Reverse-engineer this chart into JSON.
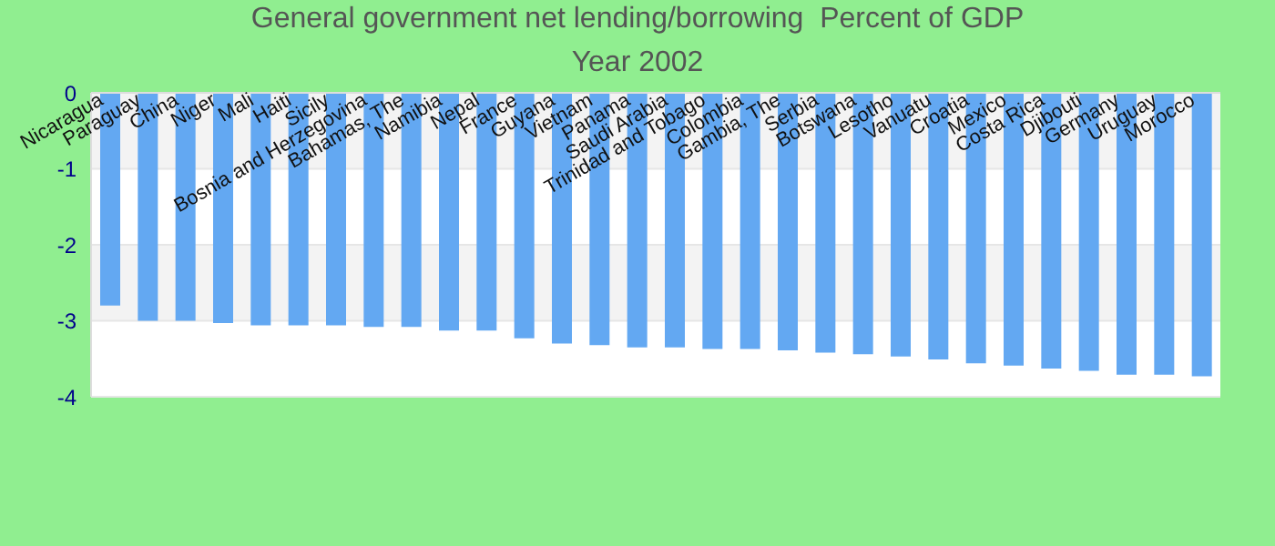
{
  "chart_data": {
    "type": "bar",
    "title": "General government net lending/borrowing  Percent of GDP",
    "subtitle": "Year 2002",
    "categories": [
      "Nicaragua",
      "Paraguay",
      "China",
      "Niger",
      "Mali",
      "Haiti",
      "Sicily",
      "Bosnia and Herzegovina",
      "Bahamas, The",
      "Namibia",
      "Nepal",
      "France",
      "Guyana",
      "Vietnam",
      "Panama",
      "Saudi Arabia",
      "Trinidad and Tobago",
      "Colombia",
      "Gambia, The",
      "Serbia",
      "Botswana",
      "Lesotho",
      "Vanuatu",
      "Croatia",
      "Mexico",
      "Costa Rica",
      "Djibouti",
      "Germany",
      "Uruguay",
      "Morocco"
    ],
    "values": [
      -2.8,
      -3.0,
      -3.0,
      -3.03,
      -3.06,
      -3.06,
      -3.06,
      -3.08,
      -3.08,
      -3.13,
      -3.13,
      -3.23,
      -3.3,
      -3.32,
      -3.35,
      -3.35,
      -3.37,
      -3.37,
      -3.39,
      -3.42,
      -3.44,
      -3.47,
      -3.51,
      -3.56,
      -3.59,
      -3.63,
      -3.66,
      -3.71,
      -3.71,
      -3.73
    ],
    "color": "#63a8f2",
    "ylim": [
      -4,
      0
    ],
    "yticks": [
      0,
      -1,
      -2,
      -3,
      -4
    ],
    "grid": "y"
  }
}
